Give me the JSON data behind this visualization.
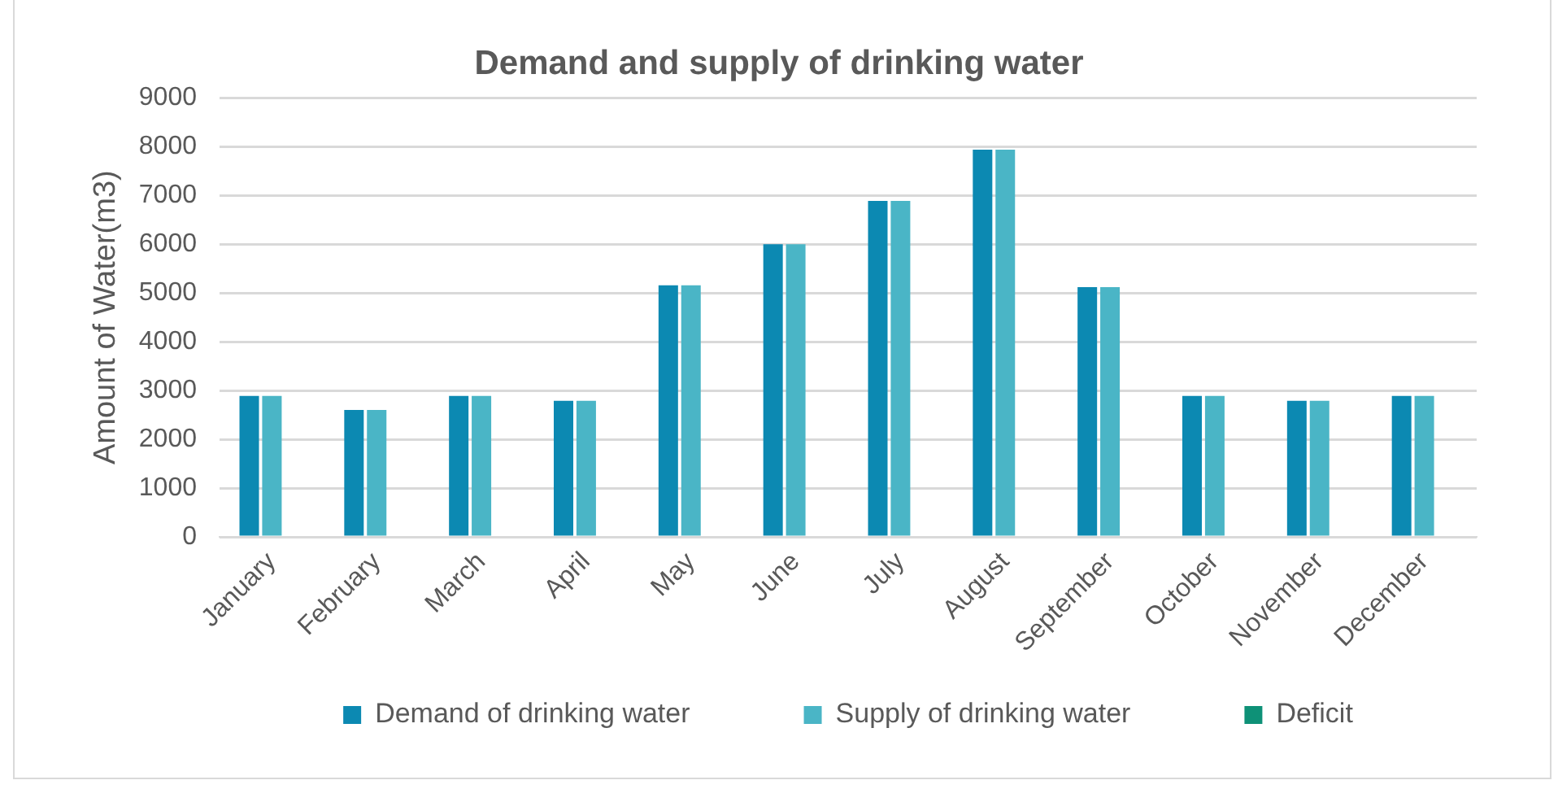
{
  "chart_data": {
    "type": "bar",
    "title": "Demand and supply of drinking water",
    "ylabel": "Amount of Water(m3)",
    "categories": [
      "January",
      "February",
      "March",
      "April",
      "May",
      "June",
      "July",
      "August",
      "September",
      "October",
      "November",
      "December"
    ],
    "series": [
      {
        "name": "Demand of drinking water",
        "color": "#0c89b2",
        "values": [
          2890,
          2600,
          2890,
          2790,
          5160,
          6000,
          6890,
          7940,
          5120,
          2890,
          2790,
          2890
        ]
      },
      {
        "name": "Supply of drinking water",
        "color": "#4ab5c6",
        "values": [
          2890,
          2600,
          2890,
          2790,
          5160,
          6000,
          6890,
          7940,
          5120,
          2890,
          2790,
          2890
        ]
      },
      {
        "name": "Deficit",
        "color": "#0e9177",
        "values": [
          0,
          0,
          0,
          0,
          0,
          0,
          0,
          0,
          0,
          0,
          0,
          0
        ]
      }
    ],
    "ylim": [
      0,
      9000
    ],
    "yticks": [
      0,
      1000,
      2000,
      3000,
      4000,
      5000,
      6000,
      7000,
      8000,
      9000
    ],
    "grid": "y",
    "legend": "bottom"
  }
}
